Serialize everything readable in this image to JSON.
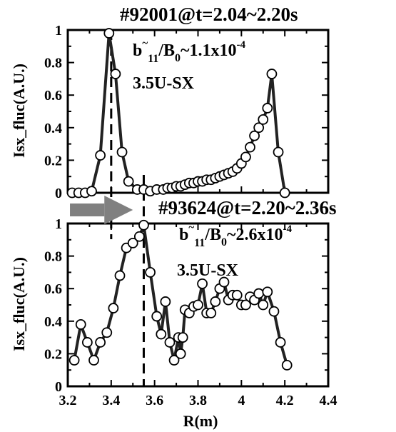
{
  "chart_data": [
    {
      "type": "line",
      "title": "#92001@t=2.04~2.20s",
      "ylabel": "Isx_fluc(A.U.)",
      "xlabel": "",
      "xlim": [
        3.2,
        4.4
      ],
      "ylim": [
        0,
        1
      ],
      "xticks": [
        "3.2",
        "3.4",
        "3.6",
        "3.8",
        "4",
        "4.2",
        "4.4"
      ],
      "yticks": [
        "0",
        "0.2",
        "0.4",
        "0.6",
        "0.8",
        "1"
      ],
      "xtick_labels_visible": false,
      "annotation_symbol": {
        "b": "b",
        "tilde": "~",
        "mode": "11",
        "slash": "/B",
        "zero": "0",
        "approx": "~1.1x10",
        "exp": "-4"
      },
      "annotation_detector": "3.5U-SX",
      "dashed_line_x": 3.4,
      "series": [
        {
          "x": [
            3.22,
            3.25,
            3.28,
            3.31,
            3.35,
            3.39,
            3.42,
            3.45,
            3.48,
            3.52,
            3.55,
            3.58,
            3.61,
            3.64,
            3.66,
            3.68,
            3.7,
            3.72,
            3.74,
            3.76,
            3.78,
            3.8,
            3.82,
            3.84,
            3.86,
            3.88,
            3.9,
            3.92,
            3.94,
            3.96,
            3.98,
            4.0,
            4.02,
            4.04,
            4.06,
            4.08,
            4.1,
            4.12,
            4.14,
            4.17,
            4.2
          ],
          "y": [
            0.0,
            0.0,
            0.0,
            0.01,
            0.23,
            0.98,
            0.73,
            0.25,
            0.07,
            0.02,
            0.02,
            0.01,
            0.02,
            0.02,
            0.03,
            0.03,
            0.04,
            0.04,
            0.05,
            0.06,
            0.06,
            0.07,
            0.07,
            0.08,
            0.08,
            0.09,
            0.1,
            0.11,
            0.12,
            0.13,
            0.15,
            0.18,
            0.22,
            0.28,
            0.35,
            0.4,
            0.45,
            0.52,
            0.73,
            0.25,
            0.0
          ]
        }
      ]
    },
    {
      "type": "line",
      "title": "#93624@t=2.20~2.36s",
      "ylabel": "Isx_fluc(A.U.)",
      "xlabel": "R(m)",
      "xlim": [
        3.2,
        4.4
      ],
      "ylim": [
        0,
        1
      ],
      "xticks": [
        "3.2",
        "3.4",
        "3.6",
        "3.8",
        "4",
        "4.2",
        "4.4"
      ],
      "yticks": [
        "0",
        "0.2",
        "0.4",
        "0.6",
        "0.8",
        "1"
      ],
      "xtick_labels_visible": true,
      "annotation_symbol": {
        "b": "b",
        "tilde": "~",
        "mode": "11",
        "slash": "/B",
        "zero": "0",
        "approx": "~2.6x10",
        "exp": "-4"
      },
      "annotation_detector": "3.5U-SX",
      "dashed_line_x": 3.55,
      "series": [
        {
          "x": [
            3.23,
            3.26,
            3.29,
            3.32,
            3.35,
            3.38,
            3.41,
            3.44,
            3.47,
            3.5,
            3.53,
            3.55,
            3.58,
            3.61,
            3.63,
            3.65,
            3.67,
            3.69,
            3.71,
            3.72,
            3.73,
            3.74,
            3.76,
            3.78,
            3.8,
            3.82,
            3.84,
            3.86,
            3.88,
            3.9,
            3.92,
            3.94,
            3.96,
            3.98,
            4.0,
            4.02,
            4.04,
            4.06,
            4.08,
            4.1,
            4.12,
            4.15,
            4.18,
            4.21
          ],
          "y": [
            0.16,
            0.38,
            0.27,
            0.16,
            0.27,
            0.33,
            0.48,
            0.68,
            0.85,
            0.88,
            0.92,
            0.99,
            0.7,
            0.43,
            0.32,
            0.52,
            0.27,
            0.16,
            0.3,
            0.2,
            0.3,
            0.47,
            0.45,
            0.49,
            0.5,
            0.63,
            0.45,
            0.45,
            0.52,
            0.6,
            0.64,
            0.53,
            0.56,
            0.56,
            0.5,
            0.5,
            0.55,
            0.53,
            0.57,
            0.5,
            0.58,
            0.46,
            0.27,
            0.13
          ]
        }
      ]
    }
  ],
  "arrow": {
    "color": "#808080",
    "from_x": 3.21,
    "to_x": 3.5,
    "at_y": 1.12
  }
}
